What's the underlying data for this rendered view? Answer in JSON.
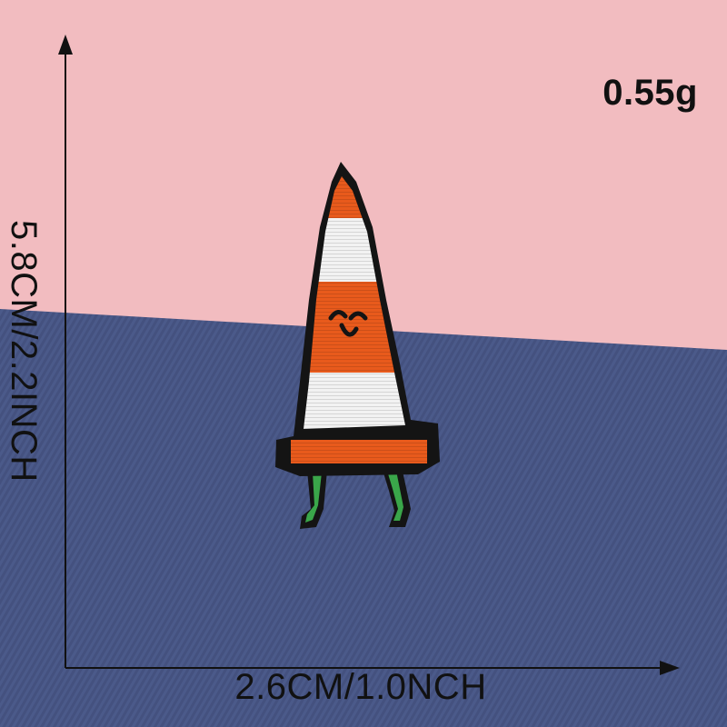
{
  "product": {
    "weight": "0.55g",
    "width_label": "2.6CM/1.0NCH",
    "height_label": "5.8CM/2.2INCH"
  },
  "colors": {
    "pink_background": "#f2bcc0",
    "denim_background": "#4b5a8a",
    "patch_border": "#141414",
    "cone_orange": "#e85a1c",
    "cone_white": "#f2f2f2",
    "legs_green": "#3aa64a"
  }
}
